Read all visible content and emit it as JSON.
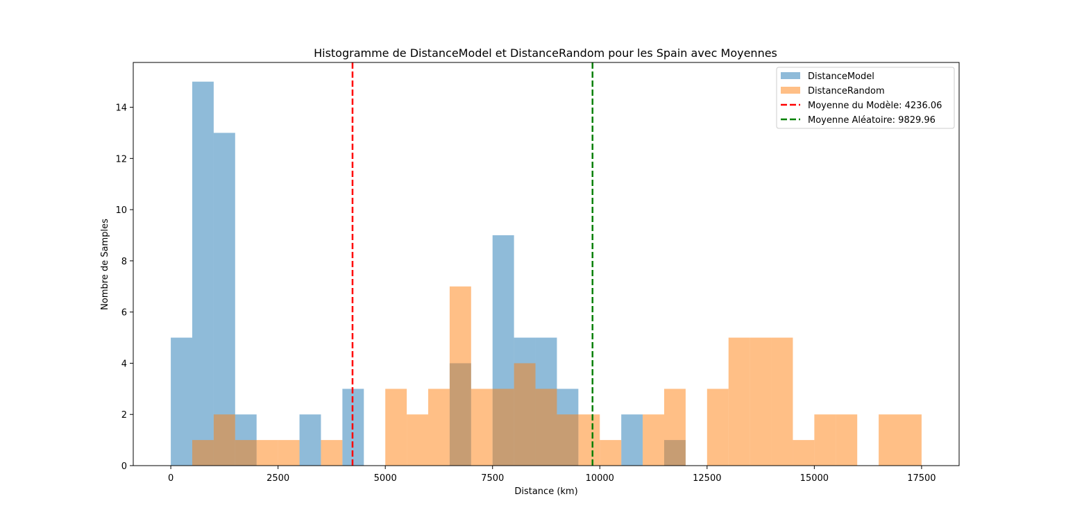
{
  "chart_data": {
    "type": "bar",
    "title": "Histogramme de DistanceModel et DistanceRandom pour les Spain avec Moyennes",
    "xlabel": "Distance (km)",
    "ylabel": "Nombre de Samples",
    "xlim": [
      -875,
      18375
    ],
    "ylim": [
      0,
      15.75
    ],
    "xticks": [
      0,
      2500,
      5000,
      7500,
      10000,
      12500,
      15000,
      17500
    ],
    "yticks": [
      0,
      2,
      4,
      6,
      8,
      10,
      12,
      14
    ],
    "bin_width": 500,
    "grid": false,
    "legend_position": "upper right",
    "series": [
      {
        "name": "DistanceModel",
        "color": "#1f77b4",
        "alpha": 0.5,
        "bin_starts": [
          0,
          500,
          1000,
          1500,
          3000,
          4000,
          6500,
          7500,
          8000,
          8500,
          9000,
          10500,
          11500
        ],
        "counts": [
          5,
          15,
          13,
          2,
          2,
          3,
          4,
          9,
          5,
          5,
          3,
          2,
          1
        ]
      },
      {
        "name": "DistanceRandom",
        "color": "#ff7f0e",
        "alpha": 0.5,
        "bin_starts": [
          500,
          1000,
          1500,
          2000,
          2500,
          3500,
          5000,
          5500,
          6000,
          6500,
          7000,
          7500,
          8000,
          8500,
          9000,
          9500,
          10000,
          11000,
          11500,
          12500,
          13000,
          13500,
          14000,
          14500,
          15000,
          15500,
          16500,
          17000
        ],
        "counts": [
          1,
          2,
          1,
          1,
          1,
          1,
          3,
          2,
          3,
          7,
          3,
          3,
          4,
          3,
          2,
          2,
          1,
          2,
          3,
          3,
          5,
          5,
          5,
          1,
          2,
          2,
          2,
          2
        ]
      }
    ],
    "mean_lines": [
      {
        "label": "Moyenne du Modèle: 4236.06",
        "value": 4236.06,
        "color": "#ff0000"
      },
      {
        "label": "Moyenne Aléatoire: 9829.96",
        "value": 9829.96,
        "color": "#008000"
      }
    ]
  }
}
